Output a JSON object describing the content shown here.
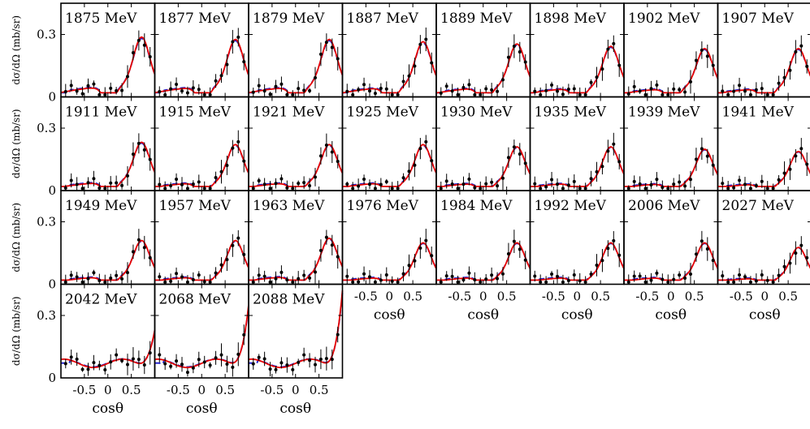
{
  "chart_data": {
    "type": "scatter",
    "x_title": "cosθ",
    "y_title": "dσ/dΩ (mb/sr)",
    "xlim": [
      -1,
      1
    ],
    "ylim": [
      0,
      0.45
    ],
    "x_ticks": [
      -0.5,
      0,
      0.5
    ],
    "x_tick_labels": [
      "-0.5",
      "0",
      "0.5"
    ],
    "y_ticks": [
      0,
      0.3
    ],
    "y_tick_labels": [
      "0",
      "0.3"
    ],
    "curves": [
      {
        "color": "#e60000",
        "style": "solid"
      },
      {
        "color": "#1a1acc",
        "style": "dashed"
      }
    ],
    "panels": [
      {
        "label": "1875 MeV",
        "peak": 0.26
      },
      {
        "label": "1877 MeV",
        "peak": 0.25
      },
      {
        "label": "1879 MeV",
        "peak": 0.25
      },
      {
        "label": "1887 MeV",
        "peak": 0.24
      },
      {
        "label": "1889 MeV",
        "peak": 0.23
      },
      {
        "label": "1898 MeV",
        "peak": 0.22
      },
      {
        "label": "1902 MeV",
        "peak": 0.21
      },
      {
        "label": "1907 MeV",
        "peak": 0.21
      },
      {
        "label": "1911 MeV",
        "peak": 0.21
      },
      {
        "label": "1915 MeV",
        "peak": 0.2
      },
      {
        "label": "1921 MeV",
        "peak": 0.2
      },
      {
        "label": "1925 MeV",
        "peak": 0.2
      },
      {
        "label": "1930 MeV",
        "peak": 0.19
      },
      {
        "label": "1935 MeV",
        "peak": 0.19
      },
      {
        "label": "1939 MeV",
        "peak": 0.18
      },
      {
        "label": "1941 MeV",
        "peak": 0.17
      },
      {
        "label": "1949 MeV",
        "peak": 0.19
      },
      {
        "label": "1957 MeV",
        "peak": 0.19
      },
      {
        "label": "1963 MeV",
        "peak": 0.2
      },
      {
        "label": "1976 MeV",
        "peak": 0.18
      },
      {
        "label": "1984 MeV",
        "peak": 0.18
      },
      {
        "label": "1992 MeV",
        "peak": 0.18
      },
      {
        "label": "2006 MeV",
        "peak": 0.18
      },
      {
        "label": "2027 MeV",
        "peak": 0.16
      },
      {
        "label": "2042 MeV",
        "peak": 0.18
      },
      {
        "label": "2068 MeV",
        "peak": 0.3
      },
      {
        "label": "2088 MeV",
        "peak": 0.37
      }
    ]
  }
}
